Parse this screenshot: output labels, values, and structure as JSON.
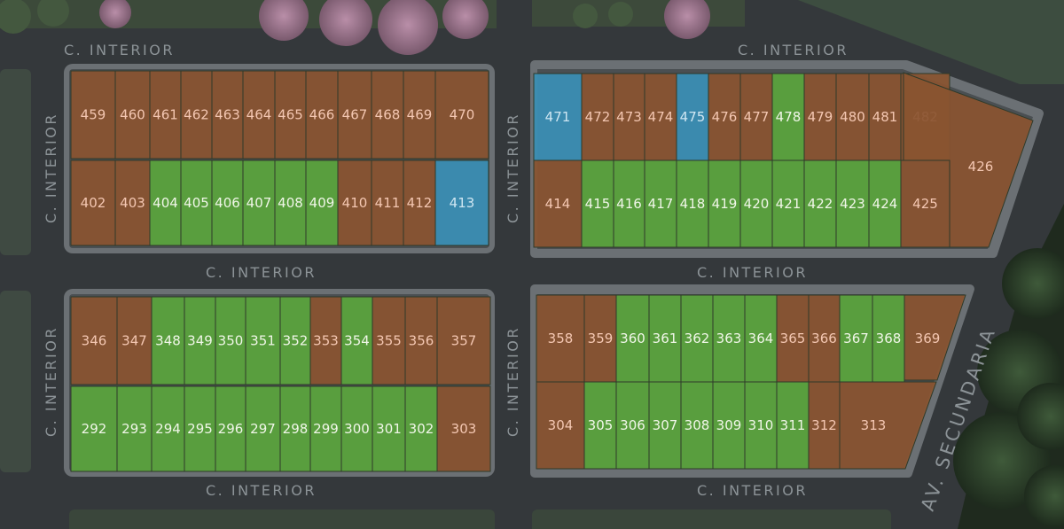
{
  "street_labels": {
    "top_left": "C. INTERIOR",
    "top_right": "C. INTERIOR",
    "mid_left": "C. INTERIOR",
    "mid_right": "C. INTERIOR",
    "bottom_left": "C. INTERIOR",
    "bottom_right": "C. INTERIOR",
    "vertical_left_top": "C. INTERIOR",
    "vertical_mid_top": "C. INTERIOR",
    "vertical_left_bottom": "C. INTERIOR",
    "vertical_mid_bottom": "C. INTERIOR",
    "avenue": "AV. SECUNDARIA"
  },
  "status_colors": {
    "sold": "#8a5430",
    "available": "#5aa53c",
    "reserved": "#3a8fb5"
  },
  "label_colors": {
    "sold": "#f4c7b2",
    "available": "#f0f6e8",
    "reserved": "#cfe6f2"
  },
  "blocks": [
    {
      "id": "block-top-left",
      "rows": [
        {
          "lots": [
            {
              "number": "459",
              "status": "sold"
            },
            {
              "number": "460",
              "status": "sold"
            },
            {
              "number": "461",
              "status": "sold"
            },
            {
              "number": "462",
              "status": "sold"
            },
            {
              "number": "463",
              "status": "sold"
            },
            {
              "number": "464",
              "status": "sold"
            },
            {
              "number": "465",
              "status": "sold"
            },
            {
              "number": "466",
              "status": "sold"
            },
            {
              "number": "467",
              "status": "sold"
            },
            {
              "number": "468",
              "status": "sold"
            },
            {
              "number": "469",
              "status": "sold"
            },
            {
              "number": "470",
              "status": "sold"
            }
          ]
        },
        {
          "lots": [
            {
              "number": "402",
              "status": "sold"
            },
            {
              "number": "403",
              "status": "sold"
            },
            {
              "number": "404",
              "status": "available"
            },
            {
              "number": "405",
              "status": "available"
            },
            {
              "number": "406",
              "status": "available"
            },
            {
              "number": "407",
              "status": "available"
            },
            {
              "number": "408",
              "status": "available"
            },
            {
              "number": "409",
              "status": "available"
            },
            {
              "number": "410",
              "status": "sold"
            },
            {
              "number": "411",
              "status": "sold"
            },
            {
              "number": "412",
              "status": "sold"
            },
            {
              "number": "413",
              "status": "reserved"
            }
          ]
        }
      ]
    },
    {
      "id": "block-top-right",
      "rows": [
        {
          "lots": [
            {
              "number": "471",
              "status": "reserved"
            },
            {
              "number": "472",
              "status": "sold"
            },
            {
              "number": "473",
              "status": "sold"
            },
            {
              "number": "474",
              "status": "sold"
            },
            {
              "number": "475",
              "status": "reserved"
            },
            {
              "number": "476",
              "status": "sold"
            },
            {
              "number": "477",
              "status": "sold"
            },
            {
              "number": "478",
              "status": "available"
            },
            {
              "number": "479",
              "status": "sold"
            },
            {
              "number": "480",
              "status": "sold"
            },
            {
              "number": "481",
              "status": "sold"
            },
            {
              "number": "482",
              "status": "sold"
            }
          ]
        },
        {
          "lots": [
            {
              "number": "414",
              "status": "sold"
            },
            {
              "number": "415",
              "status": "available"
            },
            {
              "number": "416",
              "status": "available"
            },
            {
              "number": "417",
              "status": "available"
            },
            {
              "number": "418",
              "status": "available"
            },
            {
              "number": "419",
              "status": "available"
            },
            {
              "number": "420",
              "status": "available"
            },
            {
              "number": "421",
              "status": "available"
            },
            {
              "number": "422",
              "status": "available"
            },
            {
              "number": "423",
              "status": "available"
            },
            {
              "number": "424",
              "status": "available"
            },
            {
              "number": "425",
              "status": "sold"
            }
          ]
        }
      ],
      "corner_lot": {
        "number": "426",
        "status": "sold"
      }
    },
    {
      "id": "block-bottom-left",
      "rows": [
        {
          "lots": [
            {
              "number": "346",
              "status": "sold"
            },
            {
              "number": "347",
              "status": "sold"
            },
            {
              "number": "348",
              "status": "available"
            },
            {
              "number": "349",
              "status": "available"
            },
            {
              "number": "350",
              "status": "available"
            },
            {
              "number": "351",
              "status": "available"
            },
            {
              "number": "352",
              "status": "available"
            },
            {
              "number": "353",
              "status": "sold"
            },
            {
              "number": "354",
              "status": "available"
            },
            {
              "number": "355",
              "status": "sold"
            },
            {
              "number": "356",
              "status": "sold"
            },
            {
              "number": "357",
              "status": "sold"
            }
          ]
        },
        {
          "lots": [
            {
              "number": "292",
              "status": "available"
            },
            {
              "number": "293",
              "status": "available"
            },
            {
              "number": "294",
              "status": "available"
            },
            {
              "number": "295",
              "status": "available"
            },
            {
              "number": "296",
              "status": "available"
            },
            {
              "number": "297",
              "status": "available"
            },
            {
              "number": "298",
              "status": "available"
            },
            {
              "number": "299",
              "status": "available"
            },
            {
              "number": "300",
              "status": "available"
            },
            {
              "number": "301",
              "status": "available"
            },
            {
              "number": "302",
              "status": "available"
            },
            {
              "number": "303",
              "status": "sold"
            }
          ]
        }
      ]
    },
    {
      "id": "block-bottom-right",
      "rows": [
        {
          "lots": [
            {
              "number": "358",
              "status": "sold"
            },
            {
              "number": "359",
              "status": "sold"
            },
            {
              "number": "360",
              "status": "available"
            },
            {
              "number": "361",
              "status": "available"
            },
            {
              "number": "362",
              "status": "available"
            },
            {
              "number": "363",
              "status": "available"
            },
            {
              "number": "364",
              "status": "available"
            },
            {
              "number": "365",
              "status": "sold"
            },
            {
              "number": "366",
              "status": "sold"
            },
            {
              "number": "367",
              "status": "available"
            },
            {
              "number": "368",
              "status": "available"
            },
            {
              "number": "369",
              "status": "sold"
            }
          ]
        },
        {
          "lots": [
            {
              "number": "304",
              "status": "sold"
            },
            {
              "number": "305",
              "status": "available"
            },
            {
              "number": "306",
              "status": "available"
            },
            {
              "number": "307",
              "status": "available"
            },
            {
              "number": "308",
              "status": "available"
            },
            {
              "number": "309",
              "status": "available"
            },
            {
              "number": "310",
              "status": "available"
            },
            {
              "number": "311",
              "status": "available"
            },
            {
              "number": "312",
              "status": "sold"
            },
            {
              "number": "313",
              "status": "sold"
            }
          ]
        }
      ]
    }
  ]
}
